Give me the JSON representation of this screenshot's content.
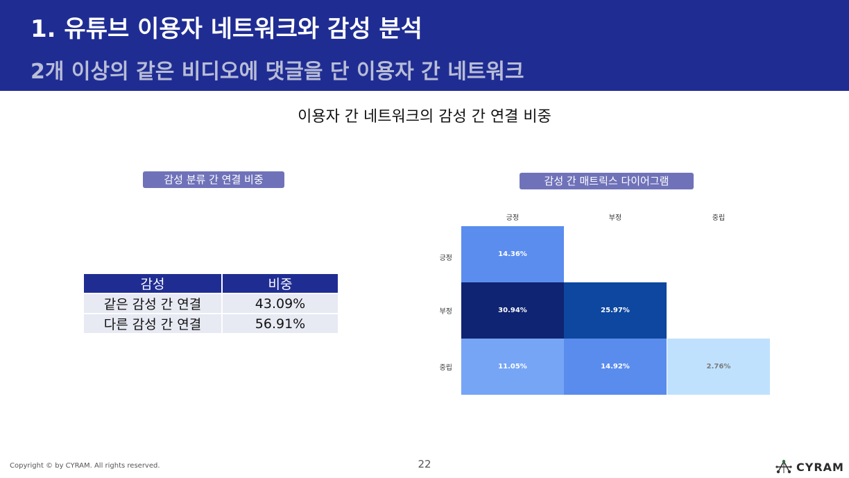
{
  "header": {
    "title": "1. 유튜브 이용자 네트워크와 감성 분석",
    "subtitle": "2개 이상의 같은 비디오에 댓글을 단 이용자 간 네트워크"
  },
  "section_title": "이용자 간 네트워크의 감성 간 연결 비중",
  "left_panel": {
    "label": "감성 분류 간 연결 비중",
    "table": {
      "headers": [
        "감성",
        "비중"
      ],
      "rows": [
        [
          "같은 감성 간 연결",
          "43.09%"
        ],
        [
          "다른 감성 간 연결",
          "56.91%"
        ]
      ]
    }
  },
  "right_panel": {
    "label": "감성 간 매트릭스 다이어그램"
  },
  "chart_data": {
    "type": "heatmap",
    "title": "감성 간 매트릭스 다이어그램",
    "x_categories": [
      "긍정",
      "부정",
      "중립"
    ],
    "y_categories": [
      "긍정",
      "부정",
      "중립"
    ],
    "cells": [
      {
        "row": 0,
        "col": 0,
        "value": 14.36,
        "label": "14.36%",
        "color": "#5b8def",
        "text_color": "#ffffff"
      },
      {
        "row": 1,
        "col": 0,
        "value": 30.94,
        "label": "30.94%",
        "color": "#0f2472",
        "text_color": "#ffffff"
      },
      {
        "row": 1,
        "col": 1,
        "value": 25.97,
        "label": "25.97%",
        "color": "#0d479f",
        "text_color": "#ffffff"
      },
      {
        "row": 2,
        "col": 0,
        "value": 11.05,
        "label": "11.05%",
        "color": "#76a5f5",
        "text_color": "#ffffff"
      },
      {
        "row": 2,
        "col": 1,
        "value": 14.92,
        "label": "14.92%",
        "color": "#5a8ced",
        "text_color": "#ffffff"
      },
      {
        "row": 2,
        "col": 2,
        "value": 2.76,
        "label": "2.76%",
        "color": "#bfe1fd",
        "text_color": "#7a7a7a"
      }
    ]
  },
  "footer": {
    "copyright": "Copyright © by CYRAM. All rights reserved.",
    "page_number": "22",
    "logo_text": "CYRAM"
  }
}
